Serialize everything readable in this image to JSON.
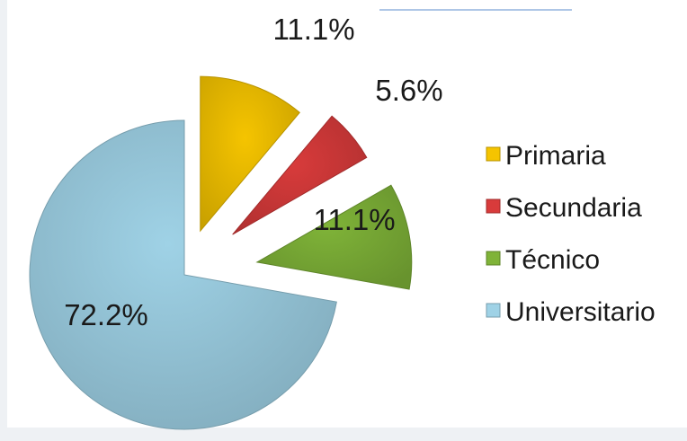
{
  "chart_data": {
    "type": "pie",
    "exploded": true,
    "title": "",
    "legend_position": "right",
    "categories": [
      "Primaria",
      "Secundaria",
      "Técnico",
      "Universitario"
    ],
    "values": [
      11.1,
      5.6,
      11.1,
      72.2
    ],
    "labels": [
      "11.1%",
      "5.6%",
      "11.1%",
      "72.2%"
    ],
    "colors": [
      "#f5c400",
      "#d83b3b",
      "#7fb338",
      "#9fd2e6"
    ]
  }
}
